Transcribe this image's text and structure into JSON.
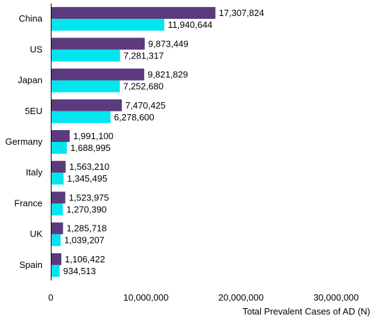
{
  "chart_data": {
    "type": "bar",
    "orientation": "horizontal",
    "categories": [
      "China",
      "US",
      "Japan",
      "5EU",
      "Germany",
      "Italy",
      "France",
      "UK",
      "Spain"
    ],
    "series": [
      {
        "color": "#5b3a7e",
        "values": [
          17307824,
          9873449,
          9821829,
          7470425,
          1991100,
          1563210,
          1523975,
          1285718,
          1106422
        ]
      },
      {
        "color": "#00e5ee",
        "values": [
          11940644,
          7281317,
          7252680,
          6278600,
          1688995,
          1345495,
          1270390,
          1039207,
          934513
        ]
      }
    ],
    "value_labels": [
      [
        "17,307,824",
        "9,873,449",
        "9,821,829",
        "7,470,425",
        "1,991,100",
        "1,563,210",
        "1,523,975",
        "1,285,718",
        "1,106,422"
      ],
      [
        "11,940,644",
        "7,281,317",
        "7,252,680",
        "6,278,600",
        "1,688,995",
        "1,345,495",
        "1,270,390",
        "1,039,207",
        "934,513"
      ]
    ],
    "xlim": [
      0,
      30000000
    ],
    "xticks": [
      0,
      10000000,
      20000000,
      30000000
    ],
    "xtick_labels": [
      "0",
      "10,000,000",
      "20,000,000",
      "30,000,000"
    ],
    "xlabel": "Total Prevalent Cases of AD (N)",
    "grid": false,
    "legend": "none"
  }
}
